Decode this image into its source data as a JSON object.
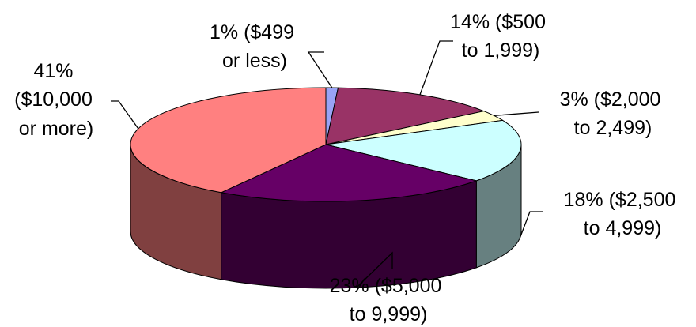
{
  "chart_data": {
    "type": "pie",
    "style": "3d",
    "title": "",
    "slices": [
      {
        "value": 1,
        "label_lines": [
          "1% ($499",
          "or less)"
        ],
        "top_color": "#99A3F5",
        "side_color": "#4E5591"
      },
      {
        "value": 14,
        "label_lines": [
          "14% ($500",
          "to 1,999)"
        ],
        "top_color": "#993366",
        "side_color": "#4C1933"
      },
      {
        "value": 3,
        "label_lines": [
          "3% ($2,000",
          "to 2,499)"
        ],
        "top_color": "#FFFFCC",
        "side_color": "#9A9A6C"
      },
      {
        "value": 18,
        "label_lines": [
          "18% ($2,500",
          "to 4,999)"
        ],
        "top_color": "#CCFFFF",
        "side_color": "#678080"
      },
      {
        "value": 23,
        "label_lines": [
          "23% ($5,000",
          "to 9,999)"
        ],
        "top_color": "#660066",
        "side_color": "#330033"
      },
      {
        "value": 41,
        "label_lines": [
          "41%",
          "($10,000",
          "or more)"
        ],
        "top_color": "#FF8080",
        "side_color": "#804040"
      }
    ]
  }
}
